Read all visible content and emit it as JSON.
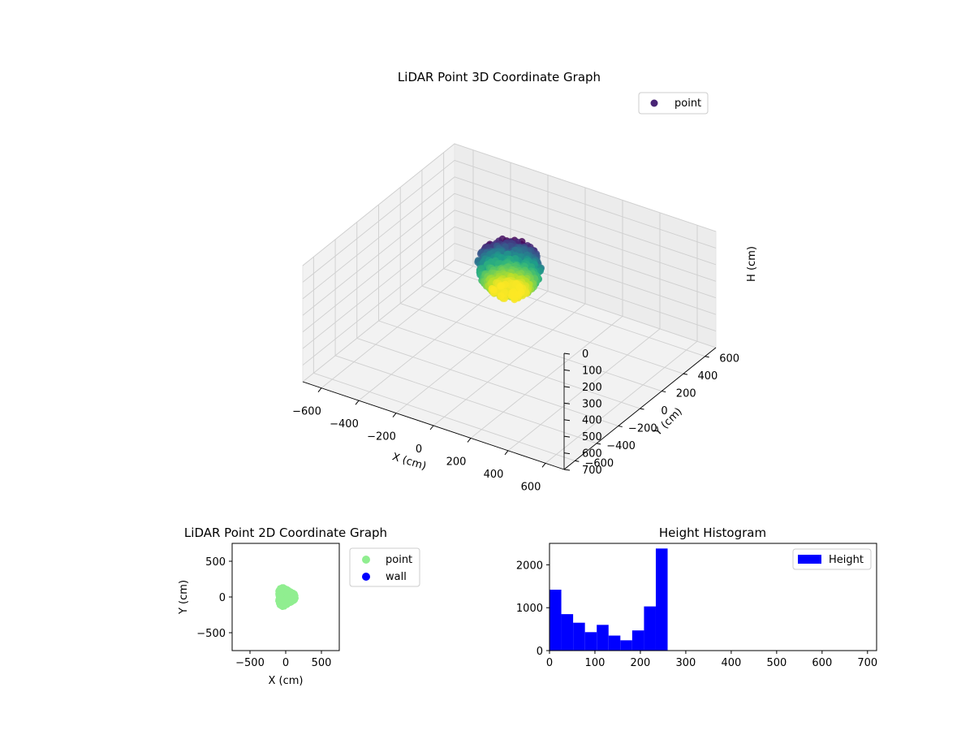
{
  "chart_data": [
    {
      "type": "scatter3d",
      "title": "LiDAR Point 3D Coordinate Graph",
      "xlabel": "X (cm)",
      "ylabel": "Y (cm)",
      "zlabel": "H (cm)",
      "xlim": [
        -700,
        700
      ],
      "ylim": [
        -700,
        700
      ],
      "zlim": [
        0,
        700
      ],
      "z_inverted": true,
      "x_ticks": [
        -600,
        -400,
        -200,
        0,
        200,
        400,
        600
      ],
      "y_ticks": [
        -600,
        -400,
        -200,
        0,
        200,
        400,
        600
      ],
      "z_ticks": [
        0,
        100,
        200,
        300,
        400,
        500,
        600,
        700
      ],
      "x_tick_labels": [
        "−600",
        "−400",
        "−200",
        "0",
        "200",
        "400",
        "600"
      ],
      "y_tick_labels": [
        "−600",
        "−400",
        "−200",
        "0",
        "200",
        "400",
        "600"
      ],
      "z_tick_labels": [
        "0",
        "100",
        "200",
        "300",
        "400",
        "500",
        "600",
        "700"
      ],
      "grid": true,
      "legend": {
        "placement": "top-right",
        "entries": [
          {
            "label": "point",
            "color": "#482475"
          }
        ]
      },
      "colormap": "viridis",
      "color_by": "H",
      "point_cloud": {
        "center_x": 0,
        "center_y": 0,
        "radius": 150,
        "h_min": 0,
        "h_max": 260
      }
    },
    {
      "type": "scatter",
      "title": "LiDAR Point 2D Coordinate Graph",
      "xlabel": "X (cm)",
      "ylabel": "Y (cm)",
      "xlim": [
        -750,
        750
      ],
      "ylim": [
        -750,
        750
      ],
      "x_ticks": [
        -500,
        0,
        500
      ],
      "y_ticks": [
        -500,
        0,
        500
      ],
      "x_tick_labels": [
        "−500",
        "0",
        "500"
      ],
      "y_tick_labels": [
        "−500",
        "0",
        "500"
      ],
      "legend": {
        "placement": "outside-right",
        "entries": [
          {
            "label": "point",
            "color": "#90ee90"
          },
          {
            "label": "wall",
            "color": "#0000ff"
          }
        ]
      },
      "point_cloud": {
        "center_x": 0,
        "center_y": 0,
        "radius": 150
      }
    },
    {
      "type": "bar",
      "title": "Height Histogram",
      "xlim": [
        0,
        720
      ],
      "ylim": [
        0,
        2500
      ],
      "x_ticks": [
        0,
        100,
        200,
        300,
        400,
        500,
        600,
        700
      ],
      "y_ticks": [
        0,
        1000,
        2000
      ],
      "bin_width": 26,
      "bin_edges_start": 0,
      "values": [
        1420,
        850,
        650,
        430,
        600,
        350,
        240,
        470,
        1030,
        2380
      ],
      "color": "#0000ff",
      "legend": {
        "placement": "top-right",
        "entries": [
          {
            "label": "Height",
            "color": "#0000ff"
          }
        ]
      }
    }
  ]
}
